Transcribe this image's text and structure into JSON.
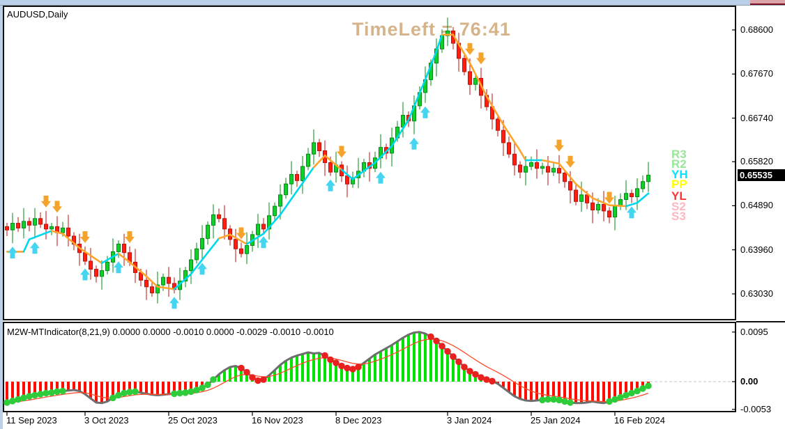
{
  "window": {
    "strip_color": "#bccfe8",
    "active_tab_color": "#dda3a9"
  },
  "main_chart": {
    "symbol_label": "AUDUSD,Daily",
    "timeleft_text": "TimeLeft = 76:41",
    "current_price": "0.65535"
  },
  "indicator": {
    "label": "M2W-MTIndicator(8,21,9) 0.0000 0.0000 -0.0010 0.0000 -0.0029 -0.0010 -0.0010"
  },
  "colors": {
    "bull_fill": "#0fd02a",
    "bull_stroke": "#008c12",
    "bear_fill": "#ff1e12",
    "bear_stroke": "#c01008",
    "ma_up": "#00d8ee",
    "ma_down": "#ffa42c",
    "arrow_up": "#45d5f0",
    "arrow_down": "#f5a42b",
    "hist_pos": "#00e400",
    "hist_neg": "#ff0e00",
    "main_line": "#6e6e6e",
    "signal_line": "#ff4a2a",
    "dot_green": "#2ecc3a",
    "dot_red": "#e8201e",
    "timeleft": "#d5b48b",
    "badge_bg": "#000000",
    "badge_text": "#ffffff",
    "zero_line": "#c4c4c4"
  },
  "chart_data": [
    {
      "type": "candlestick",
      "symbol": "AUDUSD",
      "timeframe": "Daily",
      "overlay_text": "TimeLeft = 76:41",
      "last_price": 0.65535,
      "y_ticks": [
        {
          "label": "0.68600",
          "value": 0.686
        },
        {
          "label": "0.67670",
          "value": 0.6767
        },
        {
          "label": "0.66740",
          "value": 0.6674
        },
        {
          "label": "0.65820",
          "value": 0.6582
        },
        {
          "label": "0.64890",
          "value": 0.6489
        },
        {
          "label": "0.63960",
          "value": 0.6396
        },
        {
          "label": "0.63030",
          "value": 0.6303
        }
      ],
      "x_axis_dates": [
        {
          "label": "11 Sep 2023",
          "bar": 0
        },
        {
          "label": "3 Oct 2023",
          "bar": 14
        },
        {
          "label": "25 Oct 2023",
          "bar": 29
        },
        {
          "label": "16 Nov 2023",
          "bar": 44
        },
        {
          "label": "8 Dec 2023",
          "bar": 59
        },
        {
          "label": "3 Jan 2024",
          "bar": 79
        },
        {
          "label": "25 Jan 2024",
          "bar": 94
        },
        {
          "label": "16 Feb 2024",
          "bar": 109
        }
      ],
      "closes": [
        0.6438,
        0.6452,
        0.6442,
        0.6456,
        0.6448,
        0.6462,
        0.645,
        0.644,
        0.6445,
        0.6432,
        0.6442,
        0.6425,
        0.6408,
        0.639,
        0.6372,
        0.6355,
        0.634,
        0.6352,
        0.637,
        0.6392,
        0.6408,
        0.639,
        0.637,
        0.6348,
        0.6332,
        0.6318,
        0.6305,
        0.6322,
        0.6338,
        0.6325,
        0.6312,
        0.633,
        0.6352,
        0.6375,
        0.6398,
        0.642,
        0.6448,
        0.647,
        0.6462,
        0.644,
        0.6418,
        0.6398,
        0.6388,
        0.6405,
        0.6428,
        0.645,
        0.644,
        0.6468,
        0.6488,
        0.6512,
        0.6535,
        0.6555,
        0.6542,
        0.6572,
        0.6598,
        0.6622,
        0.6605,
        0.658,
        0.656,
        0.6575,
        0.6552,
        0.6535,
        0.6548,
        0.6562,
        0.658,
        0.6568,
        0.659,
        0.6612,
        0.66,
        0.6632,
        0.6655,
        0.668,
        0.6668,
        0.67,
        0.6728,
        0.6755,
        0.679,
        0.682,
        0.6848,
        0.6858,
        0.6832,
        0.68,
        0.6772,
        0.6745,
        0.6758,
        0.6722,
        0.6698,
        0.6672,
        0.6648,
        0.6622,
        0.6598,
        0.6575,
        0.656,
        0.6572,
        0.658,
        0.6568,
        0.6572,
        0.656,
        0.6568,
        0.6558,
        0.654,
        0.6522,
        0.6498,
        0.6512,
        0.6495,
        0.648,
        0.6492,
        0.6478,
        0.6465,
        0.6488,
        0.6502,
        0.6515,
        0.6508,
        0.6525,
        0.654,
        0.65535
      ],
      "wick_up": [
        0.0008,
        0.0022,
        0.0013,
        0.0028
      ],
      "wick_down": [
        0.0013,
        0.0028,
        0.0008,
        0.0022
      ],
      "ma_segments": [
        [
          0,
          0.6392,
          "o"
        ],
        [
          3,
          0.6392,
          "o"
        ],
        [
          4,
          0.6418,
          "c"
        ],
        [
          8,
          0.6436,
          "c"
        ],
        [
          10,
          0.643,
          "o"
        ],
        [
          13,
          0.64,
          "o"
        ],
        [
          15,
          0.6384,
          "o"
        ],
        [
          17,
          0.6368,
          "o"
        ],
        [
          20,
          0.6388,
          "c"
        ],
        [
          22,
          0.637,
          "o"
        ],
        [
          25,
          0.634,
          "o"
        ],
        [
          27,
          0.6318,
          "o"
        ],
        [
          30,
          0.6313,
          "o"
        ],
        [
          33,
          0.6345,
          "c"
        ],
        [
          36,
          0.639,
          "c"
        ],
        [
          38,
          0.642,
          "c"
        ],
        [
          40,
          0.6428,
          "o"
        ],
        [
          43,
          0.6408,
          "o"
        ],
        [
          46,
          0.643,
          "c"
        ],
        [
          49,
          0.647,
          "c"
        ],
        [
          52,
          0.652,
          "c"
        ],
        [
          55,
          0.657,
          "c"
        ],
        [
          57,
          0.6595,
          "o"
        ],
        [
          60,
          0.6565,
          "o"
        ],
        [
          62,
          0.6545,
          "c"
        ],
        [
          66,
          0.658,
          "c"
        ],
        [
          69,
          0.6615,
          "c"
        ],
        [
          72,
          0.667,
          "c"
        ],
        [
          75,
          0.6755,
          "c"
        ],
        [
          77,
          0.6815,
          "c"
        ],
        [
          78,
          0.685,
          "c"
        ],
        [
          80,
          0.685,
          "o"
        ],
        [
          83,
          0.679,
          "o"
        ],
        [
          86,
          0.672,
          "o"
        ],
        [
          89,
          0.666,
          "o"
        ],
        [
          92,
          0.6605,
          "o"
        ],
        [
          93,
          0.6585,
          "o"
        ],
        [
          96,
          0.6585,
          "c"
        ],
        [
          99,
          0.6578,
          "o"
        ],
        [
          102,
          0.6535,
          "o"
        ],
        [
          105,
          0.6505,
          "o"
        ],
        [
          108,
          0.649,
          "o"
        ],
        [
          111,
          0.6488,
          "o"
        ],
        [
          113,
          0.6495,
          "c"
        ],
        [
          115,
          0.6515,
          "c"
        ]
      ],
      "signal_arrows": {
        "up_bars": [
          1,
          5,
          14,
          20,
          30,
          35,
          46,
          58,
          67,
          73,
          75,
          112
        ],
        "down_bars": [
          7,
          9,
          14,
          22,
          42,
          60,
          83,
          85,
          99,
          101,
          108
        ]
      },
      "pivot_levels": [
        {
          "label": "R3",
          "color": "#98e698",
          "price": 0.6597
        },
        {
          "label": "R2",
          "color": "#98e698",
          "price": 0.6576
        },
        {
          "label": "YH",
          "color": "#00e5ff",
          "price": 0.6554
        },
        {
          "label": "PP",
          "color": "#ffff00",
          "price": 0.6534
        },
        {
          "label": "YL",
          "color": "#ff3232",
          "price": 0.6509
        },
        {
          "label": "S2",
          "color": "#ffb6c1",
          "price": 0.6487
        },
        {
          "label": "S3",
          "color": "#ffb6c1",
          "price": 0.6466
        }
      ]
    },
    {
      "type": "bar",
      "name": "M2W-MTIndicator",
      "params": [
        8,
        21,
        9
      ],
      "label": "M2W-MTIndicator(8,21,9) 0.0000 0.0000 -0.0010 0.0000 -0.0029 -0.0010 -0.0010",
      "y_ticks": [
        {
          "label": "0.0095",
          "value": 0.0095,
          "bold": false
        },
        {
          "label": "0.00",
          "value": 0.0,
          "bold": true
        },
        {
          "label": "-0.0053",
          "value": -0.0053,
          "bold": false
        }
      ],
      "values": [
        -0.004,
        -0.0037,
        -0.0034,
        -0.0031,
        -0.0028,
        -0.0026,
        -0.0024,
        -0.0022,
        -0.0021,
        -0.0019,
        -0.0018,
        -0.0017,
        -0.0016,
        -0.0018,
        -0.0024,
        -0.0032,
        -0.004,
        -0.0041,
        -0.0038,
        -0.0031,
        -0.0026,
        -0.0022,
        -0.002,
        -0.0019,
        -0.0021,
        -0.0023,
        -0.0025,
        -0.0026,
        -0.0025,
        -0.0024,
        -0.0023,
        -0.0022,
        -0.0021,
        -0.0019,
        -0.0016,
        -0.0012,
        -0.0006,
        0.0004,
        0.0014,
        0.0022,
        0.0028,
        0.003,
        0.0026,
        0.0018,
        0.0008,
        0.0002,
        0.0004,
        0.0012,
        0.0022,
        0.0032,
        0.004,
        0.0046,
        0.005,
        0.0053,
        0.0056,
        0.0054,
        0.0055,
        0.005,
        0.0042,
        0.0036,
        0.003,
        0.0026,
        0.0024,
        0.0028,
        0.0036,
        0.0044,
        0.0052,
        0.0058,
        0.0064,
        0.007,
        0.0077,
        0.0084,
        0.009,
        0.0094,
        0.0095,
        0.0092,
        0.0086,
        0.0078,
        0.0068,
        0.0058,
        0.0048,
        0.0038,
        0.0028,
        0.002,
        0.0014,
        0.0008,
        0.0004,
        0.0001,
        -0.0004,
        -0.0012,
        -0.002,
        -0.0028,
        -0.0033,
        -0.0036,
        -0.0037,
        -0.0036,
        -0.0035,
        -0.0034,
        -0.0034,
        -0.0035,
        -0.0038,
        -0.004,
        -0.0041,
        -0.0041,
        -0.004,
        -0.0038,
        -0.004,
        -0.0041,
        -0.0038,
        -0.0034,
        -0.003,
        -0.0026,
        -0.0022,
        -0.0018,
        -0.0013,
        -0.0008
      ],
      "signal_ema_period": 9,
      "dots": {
        "green_ranges": [
          [
            0,
            10
          ],
          [
            19,
            23
          ],
          [
            30,
            37
          ],
          [
            96,
            101
          ],
          [
            108,
            115
          ]
        ],
        "red_ranges": [
          [
            42,
            46
          ],
          [
            57,
            63
          ],
          [
            76,
            87
          ]
        ]
      }
    }
  ]
}
